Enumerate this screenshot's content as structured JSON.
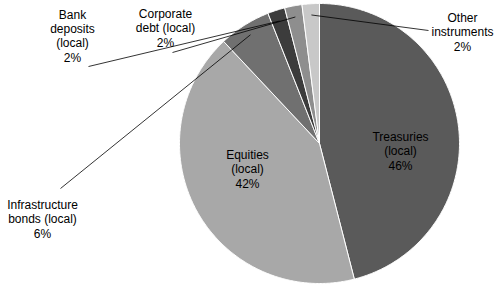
{
  "chart_data": {
    "type": "pie",
    "categories": [
      "Treasuries (local)",
      "Equities (local)",
      "Infrastructure bonds (local)",
      "Bank deposits (local)",
      "Corporate debt (local)",
      "Other instruments"
    ],
    "values": [
      46,
      42,
      6,
      2,
      2,
      2
    ],
    "value_labels": [
      "46%",
      "42%",
      "6%",
      "2%",
      "2%",
      "2%"
    ],
    "colors": [
      "#5a5a5a",
      "#a8a8a8",
      "#707070",
      "#3c3c3c",
      "#8e8e8e",
      "#c8c8c8"
    ],
    "data_labels": true
  }
}
